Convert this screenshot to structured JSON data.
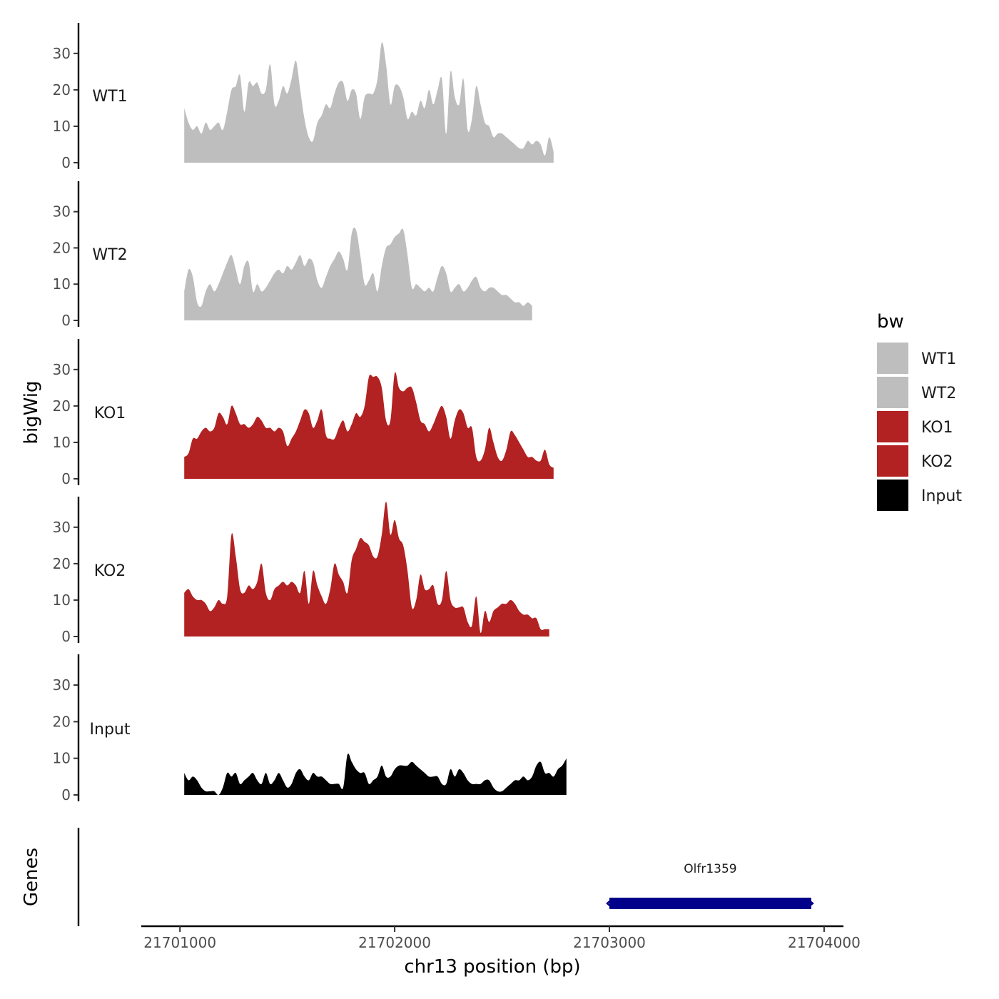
{
  "chart_data": {
    "type": "area",
    "xlabel": "chr13 position (bp)",
    "ylabel": "bigWig",
    "genes_label": "Genes",
    "xlim": [
      21700820,
      21704090
    ],
    "x_ticks": [
      21701000,
      21702000,
      21703000,
      21704000
    ],
    "x_tick_labels": [
      "21701000",
      "21702000",
      "21703000",
      "21704000"
    ],
    "ylim": [
      0,
      38
    ],
    "y_ticks": [
      0,
      10,
      20,
      30
    ],
    "y_tick_labels": [
      "0",
      "10",
      "20",
      "30"
    ],
    "x_start": 21701020,
    "x_step": 20,
    "legend": {
      "title": "bw",
      "items": [
        {
          "label": "WT1",
          "color": "#bebebe"
        },
        {
          "label": "WT2",
          "color": "#bebebe"
        },
        {
          "label": "KO1",
          "color": "#b22222"
        },
        {
          "label": "KO2",
          "color": "#b22222"
        },
        {
          "label": "Input",
          "color": "#000000"
        }
      ]
    },
    "series": [
      {
        "name": "WT1",
        "color": "#bebebe",
        "values": [
          15,
          11,
          9,
          10,
          8,
          11,
          9,
          10,
          11,
          9,
          14,
          20,
          21,
          24,
          14,
          22,
          21,
          22,
          19,
          20,
          27,
          16,
          17,
          21,
          19,
          23,
          28,
          20,
          12,
          7,
          6,
          11,
          13,
          16,
          15,
          19,
          22,
          22,
          17,
          20,
          19,
          12,
          18,
          19,
          19,
          23,
          33,
          27,
          16,
          21,
          21,
          18,
          12,
          14,
          13,
          17,
          15,
          20,
          16,
          20,
          23,
          8,
          25,
          18,
          16,
          23,
          9,
          12,
          21,
          16,
          11,
          10,
          7,
          8,
          8,
          7,
          6,
          5,
          4,
          4,
          6,
          5,
          6,
          5,
          2,
          7,
          3
        ]
      },
      {
        "name": "WT2",
        "color": "#bebebe",
        "values": [
          8,
          14,
          12,
          5,
          4,
          8,
          10,
          8,
          10,
          13,
          16,
          18,
          14,
          10,
          15,
          16,
          8,
          10,
          8,
          9,
          11,
          13,
          14,
          13,
          15,
          14,
          16,
          18,
          15,
          17,
          16,
          11,
          9,
          12,
          15,
          17,
          19,
          17,
          14,
          24,
          25,
          18,
          10,
          11,
          13,
          8,
          15,
          20,
          21,
          23,
          24,
          25,
          18,
          9,
          10,
          9,
          8,
          9,
          8,
          12,
          15,
          13,
          8,
          9,
          10,
          8,
          9,
          11,
          12,
          9,
          8,
          9,
          9,
          8,
          7,
          7,
          6,
          5,
          5,
          4,
          5,
          4
        ]
      },
      {
        "name": "KO1",
        "color": "#b22222",
        "values": [
          6,
          7,
          11,
          11,
          13,
          14,
          13,
          14,
          18,
          17,
          15,
          20,
          18,
          15,
          15,
          14,
          15,
          17,
          16,
          14,
          14,
          13,
          14,
          13,
          9,
          11,
          13,
          16,
          19,
          18,
          14,
          16,
          19,
          12,
          11,
          11,
          14,
          16,
          13,
          15,
          18,
          17,
          20,
          28,
          28,
          28,
          25,
          16,
          16,
          29,
          25,
          24,
          25,
          25,
          21,
          16,
          15,
          13,
          15,
          18,
          20,
          17,
          11,
          16,
          19,
          18,
          14,
          14,
          6,
          5,
          8,
          14,
          10,
          6,
          5,
          8,
          13,
          12,
          10,
          8,
          6,
          6,
          5,
          5,
          8,
          4,
          3
        ]
      },
      {
        "name": "KO2",
        "color": "#b22222",
        "values": [
          12,
          13,
          11,
          10,
          10,
          9,
          7,
          8,
          10,
          9,
          11,
          28,
          22,
          13,
          12,
          14,
          13,
          15,
          20,
          12,
          10,
          13,
          14,
          15,
          14,
          15,
          14,
          12,
          18,
          9,
          18,
          14,
          11,
          9,
          13,
          20,
          17,
          15,
          12,
          21,
          24,
          27,
          26,
          25,
          22,
          22,
          28,
          37,
          28,
          32,
          27,
          25,
          18,
          8,
          10,
          17,
          13,
          13,
          14,
          9,
          10,
          18,
          10,
          8,
          8,
          8,
          4,
          3,
          11,
          1,
          7,
          4,
          7,
          8,
          9,
          9,
          10,
          9,
          7,
          6,
          6,
          5,
          5,
          2,
          2,
          2
        ]
      },
      {
        "name": "Input",
        "color": "#000000",
        "values": [
          6,
          4,
          5,
          4,
          2,
          1,
          1,
          1,
          0,
          2,
          6,
          5,
          6,
          3,
          4,
          5,
          6,
          4,
          3,
          6,
          3,
          4,
          6,
          4,
          2,
          3,
          6,
          7,
          5,
          4,
          6,
          5,
          5,
          4,
          3,
          3,
          3,
          2,
          11,
          9,
          7,
          6,
          6,
          3,
          4,
          5,
          8,
          5,
          5,
          7,
          8,
          8,
          8,
          9,
          8,
          7,
          6,
          5,
          5,
          5,
          3,
          3,
          7,
          5,
          7,
          6,
          4,
          3,
          3,
          3,
          4,
          4,
          2,
          1,
          1,
          2,
          3,
          4,
          4,
          5,
          4,
          5,
          8,
          9,
          6,
          6,
          5,
          7,
          8,
          10
        ]
      }
    ],
    "gene": {
      "name": "Olfr1359",
      "start": 21703000,
      "end": 21703940,
      "strand": "-",
      "color": "#00008b"
    }
  }
}
